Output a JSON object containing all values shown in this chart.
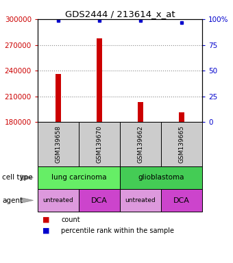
{
  "title": "GDS2444 / 213614_x_at",
  "samples": [
    "GSM139658",
    "GSM139670",
    "GSM139662",
    "GSM139665"
  ],
  "counts": [
    236000,
    278000,
    203000,
    191000
  ],
  "percentile_ranks": [
    99,
    99,
    99,
    97
  ],
  "ylim": [
    180000,
    300000
  ],
  "yticks": [
    180000,
    210000,
    240000,
    270000,
    300000
  ],
  "y2ticks": [
    0,
    25,
    50,
    75,
    100
  ],
  "y2labels": [
    "0",
    "25",
    "50",
    "75",
    "100%"
  ],
  "bar_color": "#cc0000",
  "percentile_color": "#0000cc",
  "bar_width": 0.12,
  "cell_info": [
    [
      "lung carcinoma",
      0,
      2
    ],
    [
      "glioblastoma",
      2,
      4
    ]
  ],
  "cell_type_color": "#66dd66",
  "glioblastoma_color": "#44cc66",
  "agents": [
    "untreated",
    "DCA",
    "untreated",
    "DCA"
  ],
  "agent_colors": [
    "#dd99dd",
    "#cc44cc",
    "#dd99dd",
    "#cc44cc"
  ],
  "grid_color": "#888888",
  "sample_box_color": "#cccccc",
  "background_color": "#ffffff",
  "legend_count_color": "#cc0000",
  "legend_pct_color": "#0000cc",
  "n_samples": 4
}
